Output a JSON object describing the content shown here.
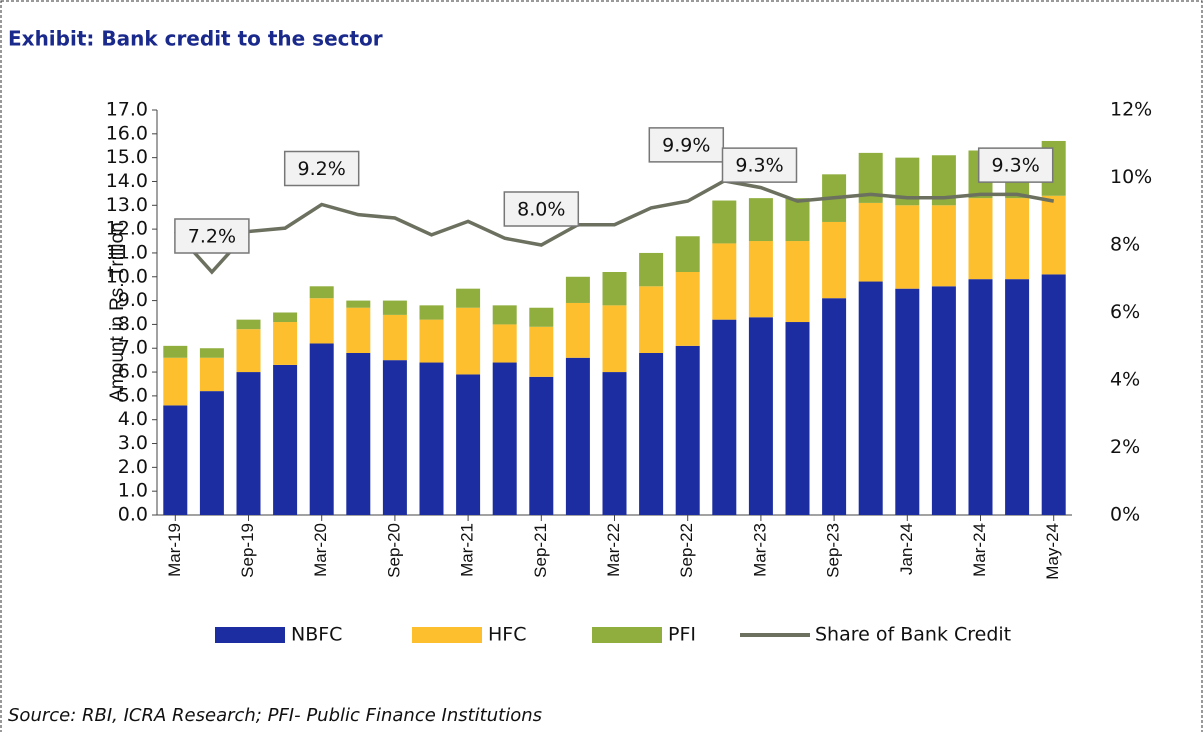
{
  "chart_data": {
    "type": "bar",
    "title": "Exhibit: Bank credit to the sector",
    "y_label": "Amount in Rs. Trillion",
    "source": "Source: RBI, ICRA Research; PFI- Public Finance Institutions",
    "stacked": true,
    "categories": [
      "Mar-19",
      null,
      "Sep-19",
      null,
      "Mar-20",
      null,
      "Sep-20",
      null,
      "Mar-21",
      null,
      "Sep-21",
      null,
      "Mar-22",
      null,
      "Sep-22",
      null,
      "Mar-23",
      null,
      "Sep-23",
      null,
      "Jan-24",
      null,
      "Mar-24",
      null,
      "May-24"
    ],
    "series": [
      {
        "name": "NBFC",
        "color": "#1b2da0",
        "values": [
          4.6,
          5.2,
          6.0,
          6.3,
          7.2,
          6.8,
          6.5,
          6.4,
          5.9,
          6.4,
          5.8,
          6.6,
          6.0,
          6.8,
          7.1,
          8.2,
          8.3,
          8.1,
          9.1,
          9.8,
          9.5,
          9.6,
          9.9,
          9.9,
          10.1
        ]
      },
      {
        "name": "HFC",
        "color": "#fdbf2e",
        "values": [
          2.0,
          1.4,
          1.8,
          1.8,
          1.9,
          1.9,
          1.9,
          1.8,
          2.8,
          1.6,
          2.1,
          2.3,
          2.8,
          2.8,
          3.1,
          3.2,
          3.2,
          3.4,
          3.2,
          3.3,
          3.5,
          3.4,
          3.4,
          3.4,
          3.3
        ]
      },
      {
        "name": "PFI",
        "color": "#8fae3e",
        "values": [
          0.5,
          0.4,
          0.4,
          0.4,
          0.5,
          0.3,
          0.6,
          0.6,
          0.8,
          0.8,
          0.8,
          1.1,
          1.4,
          1.4,
          1.5,
          1.8,
          1.8,
          1.8,
          2.0,
          2.1,
          2.0,
          2.1,
          2.0,
          2.0,
          2.3
        ]
      },
      {
        "name": "Share of Bank Credit",
        "color": "#6b705f",
        "type": "line",
        "axis": "y2",
        "values": [
          8.4,
          7.2,
          8.4,
          8.5,
          9.2,
          8.9,
          8.8,
          8.3,
          8.7,
          8.2,
          8.0,
          8.6,
          8.6,
          9.1,
          9.3,
          9.9,
          9.7,
          9.3,
          9.4,
          9.5,
          9.4,
          9.4,
          9.5,
          9.5,
          9.3
        ],
        "value_labels": [
          null,
          "7.2%",
          null,
          null,
          "9.2%",
          null,
          null,
          null,
          null,
          null,
          "8.0%",
          null,
          null,
          null,
          null,
          "9.9%",
          null,
          "9.3%",
          null,
          null,
          null,
          null,
          null,
          null,
          "9.3%"
        ]
      }
    ],
    "ylim": [
      0,
      17
    ],
    "yticks": [
      {
        "value": 0,
        "label": "0.0"
      },
      {
        "value": 1,
        "label": "1.0"
      },
      {
        "value": 2,
        "label": "2.0"
      },
      {
        "value": 3,
        "label": "3.0"
      },
      {
        "value": 4,
        "label": "4.0"
      },
      {
        "value": 5,
        "label": "5.0"
      },
      {
        "value": 6,
        "label": "6.0"
      },
      {
        "value": 7,
        "label": "7.0"
      },
      {
        "value": 8,
        "label": "8.0"
      },
      {
        "value": 9,
        "label": "9.0"
      },
      {
        "value": 10,
        "label": "10.0"
      },
      {
        "value": 11,
        "label": "11.0"
      },
      {
        "value": 12,
        "label": "12.0"
      },
      {
        "value": 13,
        "label": "13.0"
      },
      {
        "value": 14,
        "label": "14.0"
      },
      {
        "value": 15,
        "label": "15.0"
      },
      {
        "value": 16,
        "label": "16.0"
      },
      {
        "value": 17,
        "label": "17.0"
      }
    ],
    "y2lim": [
      0,
      12
    ],
    "y2ticks": [
      {
        "value": 0,
        "label": "0%"
      },
      {
        "value": 2,
        "label": "2%"
      },
      {
        "value": 4,
        "label": "4%"
      },
      {
        "value": 6,
        "label": "6%"
      },
      {
        "value": 8,
        "label": "8%"
      },
      {
        "value": 10,
        "label": "10%"
      },
      {
        "value": 12,
        "label": "12%"
      }
    ],
    "legend": "bottom"
  }
}
